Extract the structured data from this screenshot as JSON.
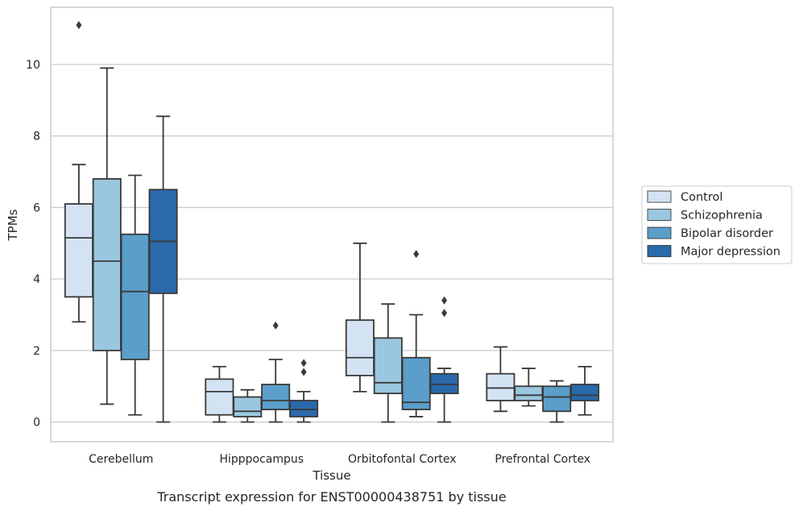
{
  "caption": "Transcript expression for ENST00000438751 by tissue",
  "chart_data": {
    "type": "box",
    "title": "",
    "xlabel": "Tissue",
    "ylabel": "TPMs",
    "ylim": [
      -0.55,
      11.6
    ],
    "yticks": [
      0,
      2,
      4,
      6,
      8,
      10
    ],
    "grid": "horizontal",
    "legend_position": "right",
    "categories": [
      "Cerebellum",
      "Hipppocampus",
      "Orbitofontal Cortex",
      "Prefrontal Cortex"
    ],
    "series": [
      {
        "name": "Control",
        "color": "#d3e3f3",
        "boxes": [
          {
            "whisker_low": 2.8,
            "q1": 3.5,
            "median": 5.15,
            "q3": 6.1,
            "whisker_high": 7.2,
            "outliers": [
              11.1
            ]
          },
          {
            "whisker_low": 0.0,
            "q1": 0.2,
            "median": 0.85,
            "q3": 1.2,
            "whisker_high": 1.55,
            "outliers": []
          },
          {
            "whisker_low": 0.85,
            "q1": 1.3,
            "median": 1.8,
            "q3": 2.85,
            "whisker_high": 5.0,
            "outliers": []
          },
          {
            "whisker_low": 0.3,
            "q1": 0.6,
            "median": 0.95,
            "q3": 1.35,
            "whisker_high": 2.1,
            "outliers": []
          }
        ]
      },
      {
        "name": "Schizophrenia",
        "color": "#9ac7e0",
        "boxes": [
          {
            "whisker_low": 0.5,
            "q1": 2.0,
            "median": 4.5,
            "q3": 6.8,
            "whisker_high": 9.9,
            "outliers": []
          },
          {
            "whisker_low": 0.0,
            "q1": 0.15,
            "median": 0.3,
            "q3": 0.7,
            "whisker_high": 0.9,
            "outliers": []
          },
          {
            "whisker_low": 0.0,
            "q1": 0.8,
            "median": 1.1,
            "q3": 2.35,
            "whisker_high": 3.3,
            "outliers": []
          },
          {
            "whisker_low": 0.45,
            "q1": 0.6,
            "median": 0.75,
            "q3": 1.0,
            "whisker_high": 1.5,
            "outliers": []
          }
        ]
      },
      {
        "name": "Bipolar disorder",
        "color": "#5a9ec9",
        "boxes": [
          {
            "whisker_low": 0.2,
            "q1": 1.75,
            "median": 3.65,
            "q3": 5.25,
            "whisker_high": 6.9,
            "outliers": []
          },
          {
            "whisker_low": 0.0,
            "q1": 0.35,
            "median": 0.6,
            "q3": 1.05,
            "whisker_high": 1.75,
            "outliers": [
              2.7
            ]
          },
          {
            "whisker_low": 0.15,
            "q1": 0.35,
            "median": 0.55,
            "q3": 1.8,
            "whisker_high": 3.0,
            "outliers": [
              4.7
            ]
          },
          {
            "whisker_low": 0.0,
            "q1": 0.3,
            "median": 0.7,
            "q3": 1.0,
            "whisker_high": 1.15,
            "outliers": []
          }
        ]
      },
      {
        "name": "Major depression",
        "color": "#2a69aa",
        "boxes": [
          {
            "whisker_low": 0.0,
            "q1": 3.6,
            "median": 5.05,
            "q3": 6.5,
            "whisker_high": 8.55,
            "outliers": []
          },
          {
            "whisker_low": 0.0,
            "q1": 0.15,
            "median": 0.35,
            "q3": 0.6,
            "whisker_high": 0.85,
            "outliers": [
              1.4,
              1.65
            ]
          },
          {
            "whisker_low": 0.0,
            "q1": 0.8,
            "median": 1.05,
            "q3": 1.35,
            "whisker_high": 1.5,
            "outliers": [
              3.05,
              3.4
            ]
          },
          {
            "whisker_low": 0.2,
            "q1": 0.6,
            "median": 0.75,
            "q3": 1.05,
            "whisker_high": 1.55,
            "outliers": []
          }
        ]
      }
    ]
  }
}
